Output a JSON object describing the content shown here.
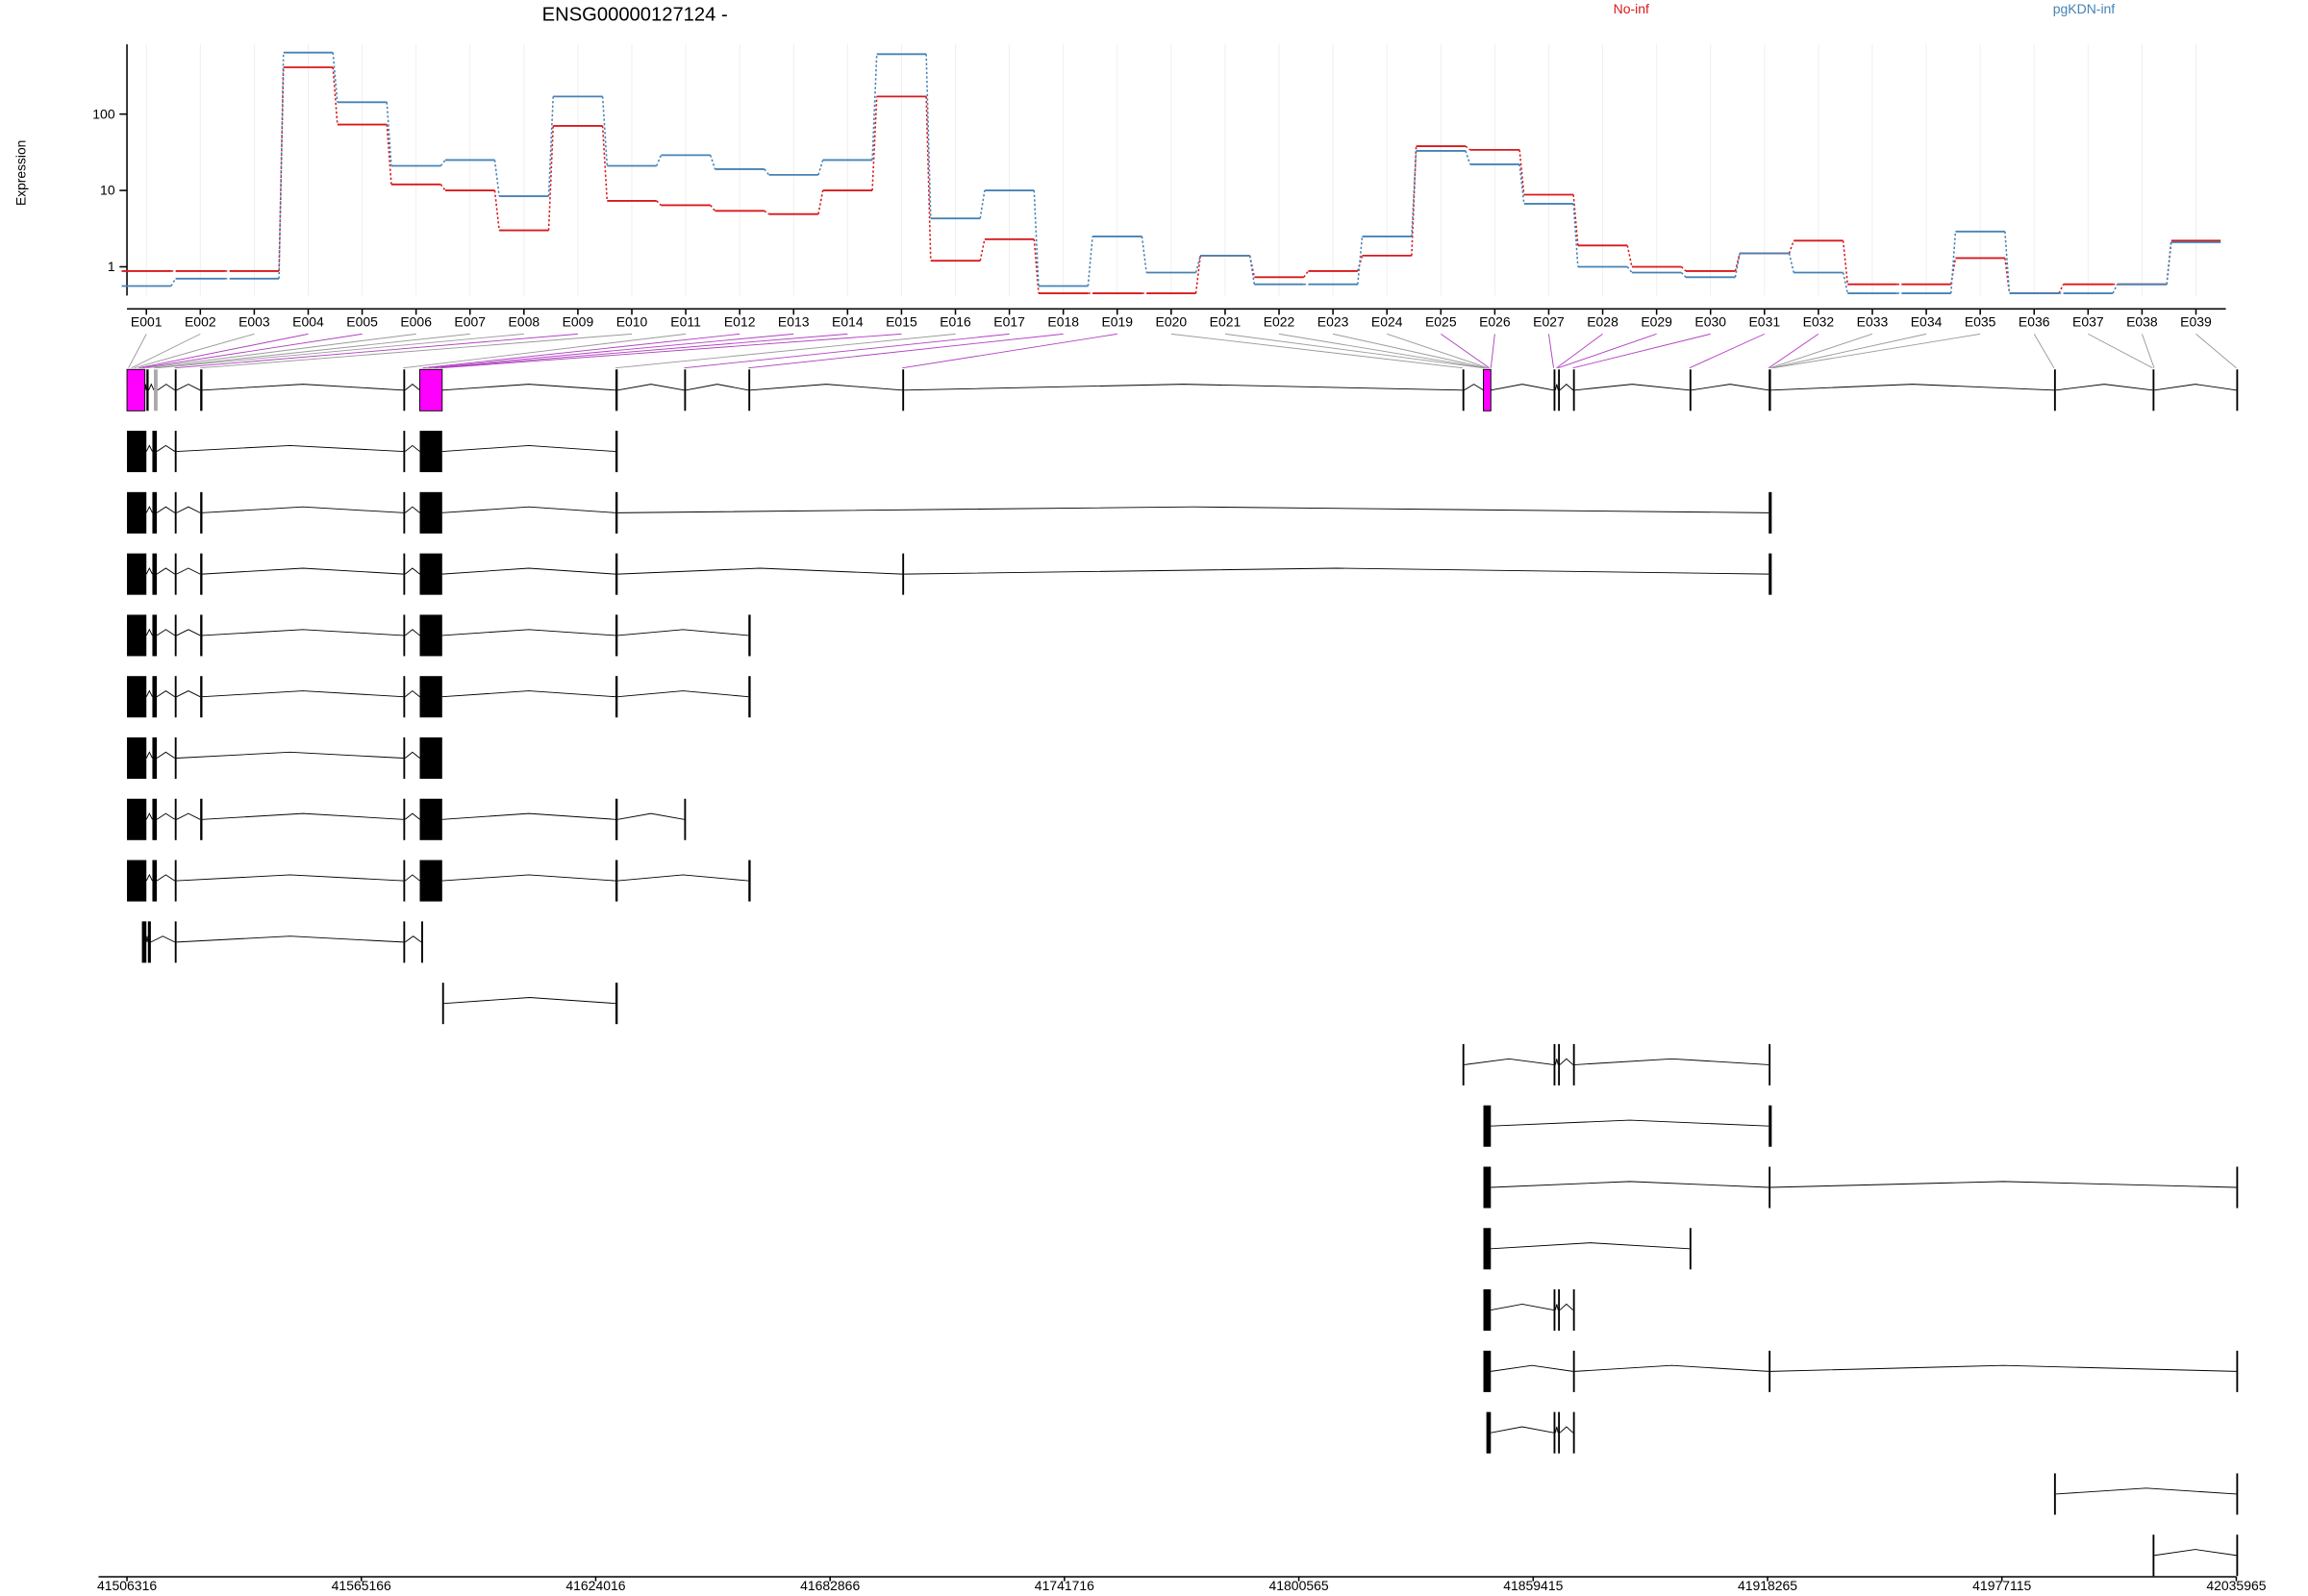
{
  "chart_data": {
    "type": "line",
    "title": "ENSG00000127124 -",
    "ylabel": "Expression",
    "log_scale": true,
    "grid": true,
    "categories": [
      "E001",
      "E002",
      "E003",
      "E004",
      "E005",
      "E006",
      "E007",
      "E008",
      "E009",
      "E010",
      "E011",
      "E012",
      "E013",
      "E014",
      "E015",
      "E016",
      "E017",
      "E018",
      "E019",
      "E020",
      "E021",
      "E022",
      "E023",
      "E024",
      "E025",
      "E026",
      "E027",
      "E028",
      "E029",
      "E030",
      "E031",
      "E032",
      "E033",
      "E034",
      "E035",
      "E036",
      "E037",
      "E038",
      "E039"
    ],
    "series": [
      {
        "name": "No-inf",
        "color": "#d7191c",
        "values": [
          0.88,
          0.88,
          0.88,
          410,
          73,
          12,
          10,
          3.0,
          70,
          7.3,
          6.4,
          5.4,
          4.9,
          10,
          170,
          1.2,
          2.3,
          0.45,
          0.45,
          0.45,
          1.4,
          0.73,
          0.88,
          1.4,
          38,
          34,
          8.8,
          1.9,
          1.0,
          0.88,
          1.5,
          2.2,
          0.59,
          0.59,
          1.3,
          0.45,
          0.59,
          0.59,
          2.2
        ]
      },
      {
        "name": "pgKDN-inf",
        "color": "#4682b4",
        "values": [
          0.56,
          0.7,
          0.7,
          640,
          143,
          21,
          25,
          8.4,
          170,
          21,
          29,
          19,
          16,
          25,
          610,
          4.3,
          10,
          0.56,
          2.5,
          0.84,
          1.4,
          0.59,
          0.59,
          2.5,
          33,
          22,
          6.7,
          1.0,
          0.84,
          0.73,
          1.5,
          0.84,
          0.45,
          0.45,
          2.9,
          0.45,
          0.45,
          0.59,
          2.1
        ]
      }
    ],
    "ylim": [
      0.42,
      820
    ],
    "yticks": [
      1,
      10,
      100
    ],
    "xlim": [
      41506316,
      42035965
    ],
    "xticks": [
      41506316,
      41565166,
      41624016,
      41682866,
      41741716,
      41800565,
      41859415,
      41918265,
      41977115,
      42035965
    ]
  }
}
